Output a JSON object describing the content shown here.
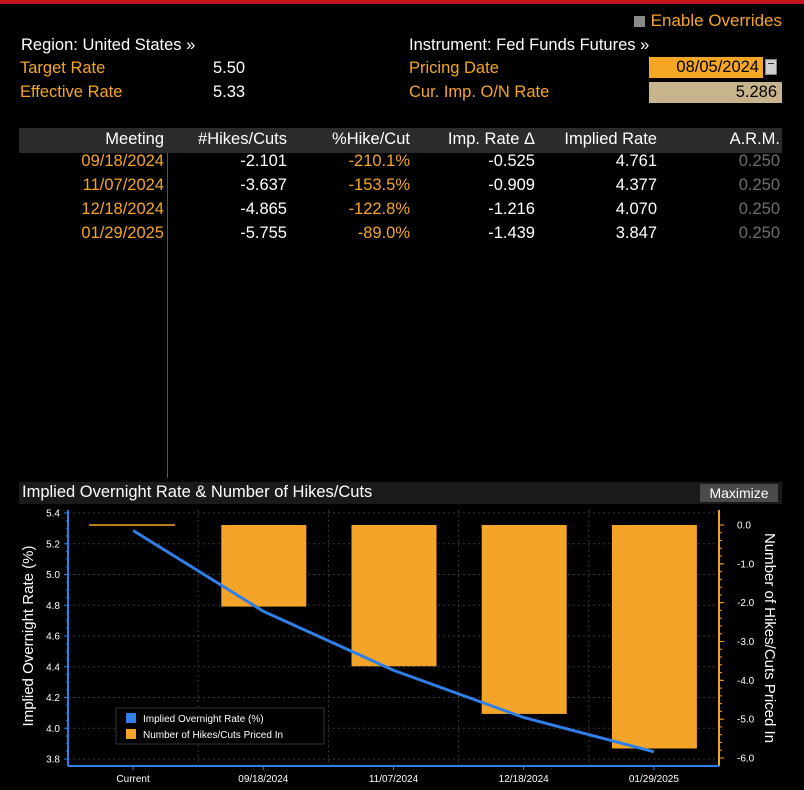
{
  "header": {
    "enable_overrides": "Enable Overrides",
    "region": "Region: United States »",
    "instrument": "Instrument: Fed Funds Futures »",
    "target_rate_label": "Target Rate",
    "target_rate_value": "5.50",
    "effective_rate_label": "Effective Rate",
    "effective_rate_value": "5.33",
    "pricing_date_label": "Pricing Date",
    "pricing_date_value": "08/05/2024",
    "cur_imp_label": "Cur. Imp. O/N Rate",
    "cur_imp_value": "5.286"
  },
  "table": {
    "columns": [
      "Meeting",
      "#Hikes/Cuts",
      "%Hike/Cut",
      "Imp. Rate Δ",
      "Implied Rate",
      "A.R.M."
    ],
    "rows": [
      {
        "meeting": "09/18/2024",
        "hikes": "-2.101",
        "pct": "-210.1%",
        "delta": "-0.525",
        "implied": "4.761",
        "arm": "0.250"
      },
      {
        "meeting": "11/07/2024",
        "hikes": "-3.637",
        "pct": "-153.5%",
        "delta": "-0.909",
        "implied": "4.377",
        "arm": "0.250"
      },
      {
        "meeting": "12/18/2024",
        "hikes": "-4.865",
        "pct": "-122.8%",
        "delta": "-1.216",
        "implied": "4.070",
        "arm": "0.250"
      },
      {
        "meeting": "01/29/2025",
        "hikes": "-5.755",
        "pct": "-89.0%",
        "delta": "-1.439",
        "implied": "3.847",
        "arm": "0.250"
      }
    ]
  },
  "chart_panel": {
    "title": "Implied Overnight Rate & Number of Hikes/Cuts",
    "maximize_label": "Maximize"
  },
  "chart_data": {
    "type": "bar",
    "categories": [
      "Current",
      "09/18/2024",
      "11/07/2024",
      "12/18/2024",
      "01/29/2025"
    ],
    "series": [
      {
        "name": "Implied Overnight Rate (%)",
        "type": "line",
        "axis": "left",
        "values": [
          5.286,
          4.761,
          4.377,
          4.07,
          3.847
        ],
        "color": "#2f7fe6"
      },
      {
        "name": "Number of Hikes/Cuts Priced In",
        "type": "bar",
        "axis": "right",
        "values": [
          0,
          -2.101,
          -3.637,
          -4.865,
          -5.755
        ],
        "color": "#f5a42a"
      }
    ],
    "ylabel": "Implied Overnight Rate (%)",
    "y2label": "Number of Hikes/Cuts Priced In",
    "ylim": [
      3.8,
      5.4
    ],
    "yticks": [
      "5.4",
      "5.2",
      "5.0",
      "4.8",
      "4.6",
      "4.4",
      "4.2",
      "4.0",
      "3.8"
    ],
    "y2lim": [
      -6.0,
      0.0
    ],
    "y2ticks": [
      "0.0",
      "-1.0",
      "-2.0",
      "-3.0",
      "-4.0",
      "-5.0",
      "-6.0"
    ],
    "legend_position": "bottom-left",
    "grid": true
  }
}
